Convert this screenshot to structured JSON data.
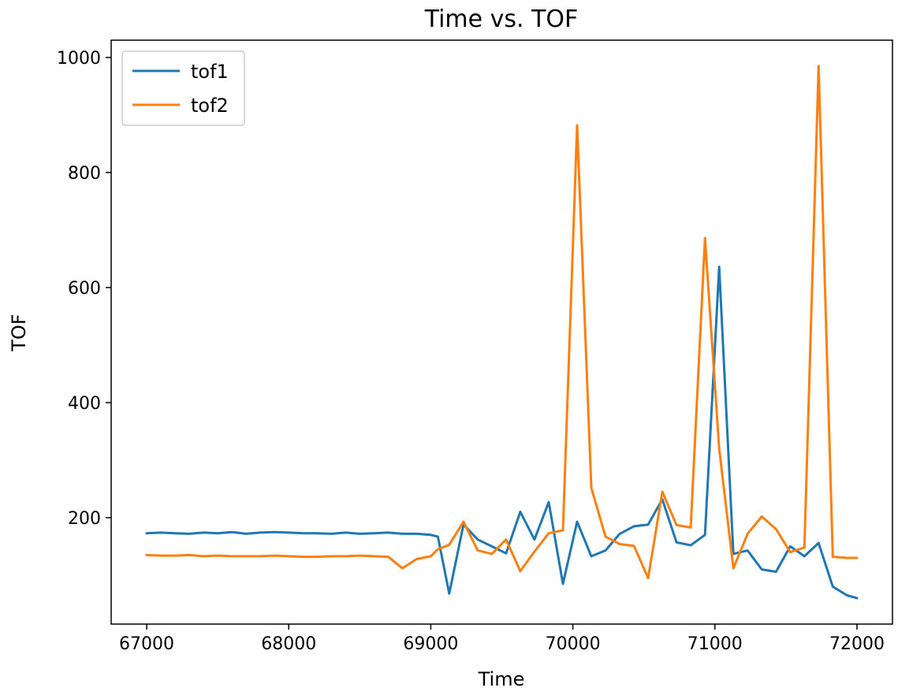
{
  "colors": {
    "tof1": "#1f77b4",
    "tof2": "#ff7f0e"
  },
  "chart_data": {
    "type": "line",
    "title": "Time vs. TOF",
    "xlabel": "Time",
    "ylabel": "TOF",
    "xlim": [
      66750,
      72250
    ],
    "ylim": [
      15,
      1030
    ],
    "xticks": [
      67000,
      68000,
      69000,
      70000,
      71000,
      72000
    ],
    "yticks": [
      200,
      400,
      600,
      800,
      1000
    ],
    "grid": false,
    "legend": "top-left",
    "x": [
      67000,
      67100,
      67200,
      67300,
      67400,
      67500,
      67600,
      67700,
      67800,
      67900,
      68000,
      68100,
      68200,
      68300,
      68400,
      68500,
      68600,
      68700,
      68800,
      68900,
      69000,
      69050,
      69130,
      69230,
      69330,
      69430,
      69530,
      69630,
      69730,
      69830,
      69930,
      70030,
      70130,
      70230,
      70330,
      70430,
      70530,
      70630,
      70730,
      70830,
      70930,
      71030,
      71130,
      71230,
      71330,
      71430,
      71530,
      71630,
      71730,
      71830,
      71930,
      72000
    ],
    "series": [
      {
        "name": "tof1",
        "values": [
          173,
          174,
          173,
          172,
          174,
          173,
          175,
          172,
          174,
          175,
          174,
          173,
          173,
          172,
          174,
          172,
          173,
          174,
          172,
          172,
          170,
          167,
          68,
          188,
          162,
          150,
          138,
          210,
          162,
          227,
          85,
          193,
          133,
          143,
          172,
          185,
          188,
          232,
          157,
          152,
          170,
          636,
          137,
          143,
          110,
          106,
          150,
          133,
          156,
          80,
          65,
          60
        ]
      },
      {
        "name": "tof2",
        "values": [
          135,
          134,
          134,
          135,
          133,
          134,
          133,
          133,
          133,
          134,
          133,
          132,
          132,
          133,
          133,
          134,
          133,
          132,
          112,
          128,
          133,
          145,
          153,
          193,
          143,
          137,
          162,
          107,
          141,
          173,
          178,
          882,
          252,
          167,
          154,
          151,
          95,
          245,
          187,
          183,
          686,
          320,
          112,
          172,
          202,
          180,
          140,
          148,
          985,
          132,
          130,
          130
        ]
      }
    ]
  }
}
